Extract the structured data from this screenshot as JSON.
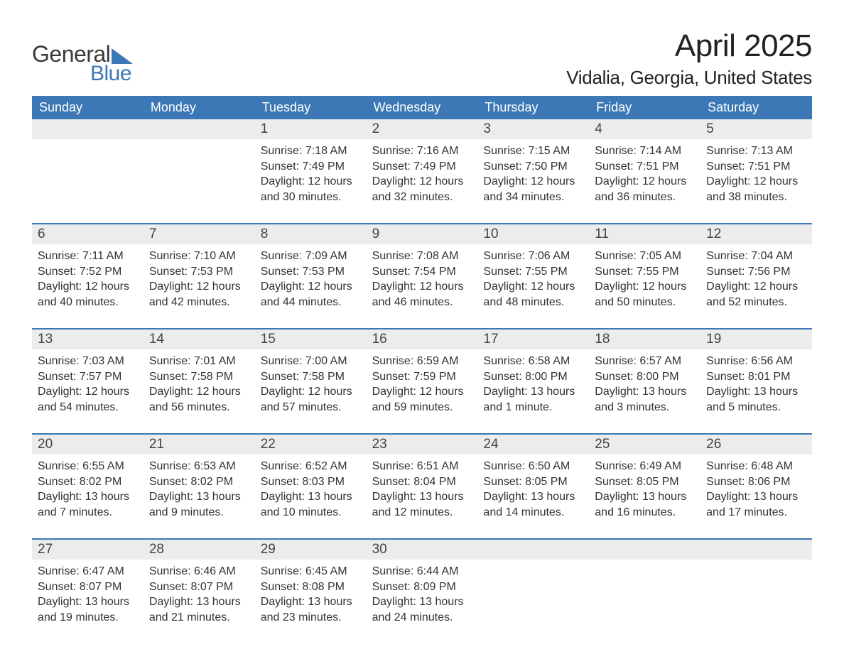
{
  "logo": {
    "text1": "General",
    "text2": "Blue",
    "tri_color": "#3b78b5"
  },
  "title": "April 2025",
  "location": "Vidalia, Georgia, United States",
  "colors": {
    "header_bg": "#3b78b5",
    "row_border": "#3b78b5",
    "daynum_bg": "#ececec",
    "text": "#333333",
    "page_bg": "#ffffff"
  },
  "typography": {
    "title_fontsize": 44,
    "location_fontsize": 26,
    "dow_fontsize": 18,
    "cell_fontsize": 16
  },
  "days_of_week": [
    "Sunday",
    "Monday",
    "Tuesday",
    "Wednesday",
    "Thursday",
    "Friday",
    "Saturday"
  ],
  "weeks": [
    [
      {
        "day": "",
        "sunrise": "",
        "sunset": "",
        "daylight": ""
      },
      {
        "day": "",
        "sunrise": "",
        "sunset": "",
        "daylight": ""
      },
      {
        "day": "1",
        "sunrise": "7:18 AM",
        "sunset": "7:49 PM",
        "daylight": "12 hours and 30 minutes."
      },
      {
        "day": "2",
        "sunrise": "7:16 AM",
        "sunset": "7:49 PM",
        "daylight": "12 hours and 32 minutes."
      },
      {
        "day": "3",
        "sunrise": "7:15 AM",
        "sunset": "7:50 PM",
        "daylight": "12 hours and 34 minutes."
      },
      {
        "day": "4",
        "sunrise": "7:14 AM",
        "sunset": "7:51 PM",
        "daylight": "12 hours and 36 minutes."
      },
      {
        "day": "5",
        "sunrise": "7:13 AM",
        "sunset": "7:51 PM",
        "daylight": "12 hours and 38 minutes."
      }
    ],
    [
      {
        "day": "6",
        "sunrise": "7:11 AM",
        "sunset": "7:52 PM",
        "daylight": "12 hours and 40 minutes."
      },
      {
        "day": "7",
        "sunrise": "7:10 AM",
        "sunset": "7:53 PM",
        "daylight": "12 hours and 42 minutes."
      },
      {
        "day": "8",
        "sunrise": "7:09 AM",
        "sunset": "7:53 PM",
        "daylight": "12 hours and 44 minutes."
      },
      {
        "day": "9",
        "sunrise": "7:08 AM",
        "sunset": "7:54 PM",
        "daylight": "12 hours and 46 minutes."
      },
      {
        "day": "10",
        "sunrise": "7:06 AM",
        "sunset": "7:55 PM",
        "daylight": "12 hours and 48 minutes."
      },
      {
        "day": "11",
        "sunrise": "7:05 AM",
        "sunset": "7:55 PM",
        "daylight": "12 hours and 50 minutes."
      },
      {
        "day": "12",
        "sunrise": "7:04 AM",
        "sunset": "7:56 PM",
        "daylight": "12 hours and 52 minutes."
      }
    ],
    [
      {
        "day": "13",
        "sunrise": "7:03 AM",
        "sunset": "7:57 PM",
        "daylight": "12 hours and 54 minutes."
      },
      {
        "day": "14",
        "sunrise": "7:01 AM",
        "sunset": "7:58 PM",
        "daylight": "12 hours and 56 minutes."
      },
      {
        "day": "15",
        "sunrise": "7:00 AM",
        "sunset": "7:58 PM",
        "daylight": "12 hours and 57 minutes."
      },
      {
        "day": "16",
        "sunrise": "6:59 AM",
        "sunset": "7:59 PM",
        "daylight": "12 hours and 59 minutes."
      },
      {
        "day": "17",
        "sunrise": "6:58 AM",
        "sunset": "8:00 PM",
        "daylight": "13 hours and 1 minute."
      },
      {
        "day": "18",
        "sunrise": "6:57 AM",
        "sunset": "8:00 PM",
        "daylight": "13 hours and 3 minutes."
      },
      {
        "day": "19",
        "sunrise": "6:56 AM",
        "sunset": "8:01 PM",
        "daylight": "13 hours and 5 minutes."
      }
    ],
    [
      {
        "day": "20",
        "sunrise": "6:55 AM",
        "sunset": "8:02 PM",
        "daylight": "13 hours and 7 minutes."
      },
      {
        "day": "21",
        "sunrise": "6:53 AM",
        "sunset": "8:02 PM",
        "daylight": "13 hours and 9 minutes."
      },
      {
        "day": "22",
        "sunrise": "6:52 AM",
        "sunset": "8:03 PM",
        "daylight": "13 hours and 10 minutes."
      },
      {
        "day": "23",
        "sunrise": "6:51 AM",
        "sunset": "8:04 PM",
        "daylight": "13 hours and 12 minutes."
      },
      {
        "day": "24",
        "sunrise": "6:50 AM",
        "sunset": "8:05 PM",
        "daylight": "13 hours and 14 minutes."
      },
      {
        "day": "25",
        "sunrise": "6:49 AM",
        "sunset": "8:05 PM",
        "daylight": "13 hours and 16 minutes."
      },
      {
        "day": "26",
        "sunrise": "6:48 AM",
        "sunset": "8:06 PM",
        "daylight": "13 hours and 17 minutes."
      }
    ],
    [
      {
        "day": "27",
        "sunrise": "6:47 AM",
        "sunset": "8:07 PM",
        "daylight": "13 hours and 19 minutes."
      },
      {
        "day": "28",
        "sunrise": "6:46 AM",
        "sunset": "8:07 PM",
        "daylight": "13 hours and 21 minutes."
      },
      {
        "day": "29",
        "sunrise": "6:45 AM",
        "sunset": "8:08 PM",
        "daylight": "13 hours and 23 minutes."
      },
      {
        "day": "30",
        "sunrise": "6:44 AM",
        "sunset": "8:09 PM",
        "daylight": "13 hours and 24 minutes."
      },
      {
        "day": "",
        "sunrise": "",
        "sunset": "",
        "daylight": ""
      },
      {
        "day": "",
        "sunrise": "",
        "sunset": "",
        "daylight": ""
      },
      {
        "day": "",
        "sunrise": "",
        "sunset": "",
        "daylight": ""
      }
    ]
  ],
  "labels": {
    "sunrise": "Sunrise: ",
    "sunset": "Sunset: ",
    "daylight": "Daylight: "
  }
}
